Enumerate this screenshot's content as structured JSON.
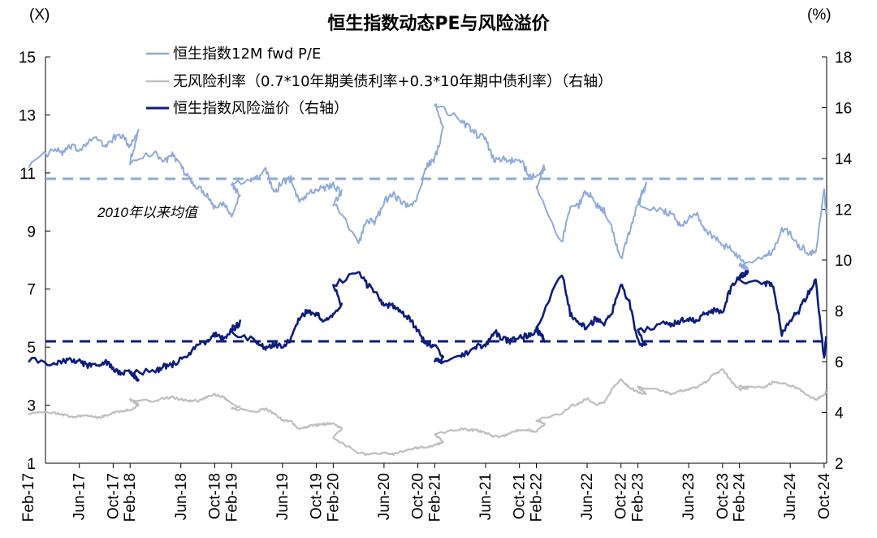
{
  "chart_data": {
    "type": "line",
    "title": "恒生指数动态PE与风险溢价",
    "left_unit": "(X)",
    "right_unit": "(%)",
    "left_axis": {
      "min": 1,
      "max": 15,
      "ticks": [
        "1",
        "3",
        "5",
        "7",
        "9",
        "11",
        "13",
        "15"
      ]
    },
    "right_axis": {
      "min": 2,
      "max": 18,
      "ticks": [
        "2",
        "4",
        "6",
        "8",
        "10",
        "12",
        "14",
        "16",
        "18"
      ]
    },
    "x_ticks": [
      "Feb-17",
      "Jun-17",
      "Oct-17",
      "Feb-18",
      "Jun-18",
      "Oct-18",
      "Feb-19",
      "Jun-19",
      "Oct-19",
      "Feb-20",
      "Jun-20",
      "Oct-20",
      "Feb-21",
      "Jun-21",
      "Oct-21",
      "Feb-22",
      "Jun-22",
      "Oct-22",
      "Feb-23",
      "Jun-23",
      "Oct-23",
      "Feb-24",
      "Jun-24",
      "Oct-24"
    ],
    "legend_position": "top-center",
    "annotation": "2010年以来均值",
    "colors": {
      "pe": "#8eaadb",
      "rf": "#bfbfbf",
      "erp": "#0c1d7d"
    },
    "series": [
      {
        "name": "恒生指数12M fwd P/E",
        "axis": "left",
        "points": [
          [
            "Feb-17",
            11.3
          ],
          [
            "Mar-17",
            11.8
          ],
          [
            "Apr-17",
            11.7
          ],
          [
            "May-17",
            11.9
          ],
          [
            "Jun-17",
            11.8
          ],
          [
            "Jul-17",
            12.1
          ],
          [
            "Aug-17",
            12.2
          ],
          [
            "Sep-17",
            11.9
          ],
          [
            "Oct-17",
            12.2
          ],
          [
            "Nov-17",
            12.3
          ],
          [
            "Dec-17",
            11.9
          ],
          [
            "Jan-18",
            12.5
          ],
          [
            "Feb-18",
            11.4
          ],
          [
            "Mar-18",
            11.7
          ],
          [
            "Apr-18",
            11.4
          ],
          [
            "May-18",
            11.6
          ],
          [
            "Jun-18",
            11.2
          ],
          [
            "Jul-18",
            10.8
          ],
          [
            "Aug-18",
            10.5
          ],
          [
            "Sep-18",
            10.3
          ],
          [
            "Oct-18",
            9.8
          ],
          [
            "Nov-18",
            10.0
          ],
          [
            "Dec-18",
            9.6
          ],
          [
            "Jan-19",
            10.2
          ],
          [
            "Feb-19",
            10.6
          ],
          [
            "Mar-19",
            10.8
          ],
          [
            "Apr-19",
            11.2
          ],
          [
            "May-19",
            10.3
          ],
          [
            "Jun-19",
            10.7
          ],
          [
            "Jul-19",
            10.8
          ],
          [
            "Aug-19",
            10.0
          ],
          [
            "Sep-19",
            10.3
          ],
          [
            "Oct-19",
            10.4
          ],
          [
            "Nov-19",
            10.5
          ],
          [
            "Dec-19",
            10.6
          ],
          [
            "Jan-20",
            10.3
          ],
          [
            "Feb-20",
            10.0
          ],
          [
            "Mar-20",
            8.6
          ],
          [
            "Apr-20",
            9.4
          ],
          [
            "May-20",
            9.3
          ],
          [
            "Jun-20",
            10.0
          ],
          [
            "Jul-20",
            10.3
          ],
          [
            "Aug-20",
            10.0
          ],
          [
            "Sep-20",
            9.8
          ],
          [
            "Oct-20",
            10.2
          ],
          [
            "Nov-20",
            11.2
          ],
          [
            "Dec-20",
            11.5
          ],
          [
            "Jan-21",
            12.5
          ],
          [
            "Feb-21",
            13.4
          ],
          [
            "Mar-21",
            12.8
          ],
          [
            "Apr-21",
            12.6
          ],
          [
            "May-21",
            12.3
          ],
          [
            "Jun-21",
            12.2
          ],
          [
            "Jul-21",
            11.4
          ],
          [
            "Aug-21",
            11.5
          ],
          [
            "Sep-21",
            11.4
          ],
          [
            "Oct-21",
            11.5
          ],
          [
            "Nov-21",
            11.0
          ],
          [
            "Dec-21",
            10.8
          ],
          [
            "Jan-22",
            11.2
          ],
          [
            "Feb-22",
            10.5
          ],
          [
            "Mar-22",
            8.6
          ],
          [
            "Apr-22",
            9.8
          ],
          [
            "May-22",
            9.9
          ],
          [
            "Jun-22",
            10.4
          ],
          [
            "Jul-22",
            9.9
          ],
          [
            "Aug-22",
            9.7
          ],
          [
            "Sep-22",
            9.0
          ],
          [
            "Oct-22",
            8.0
          ],
          [
            "Nov-22",
            9.0
          ],
          [
            "Dec-22",
            10.0
          ],
          [
            "Jan-23",
            10.6
          ],
          [
            "Feb-23",
            9.9
          ],
          [
            "Mar-23",
            9.7
          ],
          [
            "Apr-23",
            9.6
          ],
          [
            "May-23",
            9.2
          ],
          [
            "Jun-23",
            9.4
          ],
          [
            "Jul-23",
            9.6
          ],
          [
            "Aug-23",
            9.0
          ],
          [
            "Sep-23",
            8.8
          ],
          [
            "Oct-23",
            8.5
          ],
          [
            "Nov-23",
            8.4
          ],
          [
            "Dec-23",
            8.1
          ],
          [
            "Jan-24",
            7.6
          ],
          [
            "Feb-24",
            7.9
          ],
          [
            "Mar-24",
            8.1
          ],
          [
            "Apr-24",
            8.3
          ],
          [
            "May-24",
            9.1
          ],
          [
            "Jun-24",
            8.9
          ],
          [
            "Jul-24",
            8.5
          ],
          [
            "Aug-24",
            8.3
          ],
          [
            "Sep-24",
            8.2
          ],
          [
            "Oct-24",
            10.5
          ],
          [
            "Oct-24b",
            9.6
          ]
        ]
      },
      {
        "name": "无风险利率（0.7*10年期美债利率+0.3*10年期中债利率）（右轴）",
        "axis": "right",
        "points": [
          [
            "Feb-17",
            3.95
          ],
          [
            "Mar-17",
            4.0
          ],
          [
            "Apr-17",
            3.9
          ],
          [
            "May-17",
            3.85
          ],
          [
            "Jun-17",
            3.85
          ],
          [
            "Jul-17",
            3.9
          ],
          [
            "Aug-17",
            3.8
          ],
          [
            "Sep-17",
            3.85
          ],
          [
            "Oct-17",
            4.0
          ],
          [
            "Nov-17",
            4.05
          ],
          [
            "Dec-17",
            4.1
          ],
          [
            "Jan-18",
            4.3
          ],
          [
            "Feb-18",
            4.5
          ],
          [
            "Mar-18",
            4.45
          ],
          [
            "Apr-18",
            4.55
          ],
          [
            "May-18",
            4.6
          ],
          [
            "Jun-18",
            4.5
          ],
          [
            "Jul-18",
            4.45
          ],
          [
            "Aug-18",
            4.45
          ],
          [
            "Sep-18",
            4.6
          ],
          [
            "Oct-18",
            4.7
          ],
          [
            "Nov-18",
            4.6
          ],
          [
            "Dec-18",
            4.35
          ],
          [
            "Jan-19",
            4.2
          ],
          [
            "Feb-19",
            4.15
          ],
          [
            "Mar-19",
            4.05
          ],
          [
            "Apr-19",
            4.15
          ],
          [
            "May-19",
            3.95
          ],
          [
            "Jun-19",
            3.7
          ],
          [
            "Jul-19",
            3.65
          ],
          [
            "Aug-19",
            3.35
          ],
          [
            "Sep-19",
            3.45
          ],
          [
            "Oct-19",
            3.5
          ],
          [
            "Nov-19",
            3.55
          ],
          [
            "Dec-19",
            3.55
          ],
          [
            "Jan-20",
            3.35
          ],
          [
            "Feb-20",
            3.0
          ],
          [
            "Mar-20",
            2.4
          ],
          [
            "Apr-20",
            2.35
          ],
          [
            "May-20",
            2.4
          ],
          [
            "Jun-20",
            2.4
          ],
          [
            "Jul-20",
            2.35
          ],
          [
            "Aug-20",
            2.45
          ],
          [
            "Sep-20",
            2.55
          ],
          [
            "Oct-20",
            2.6
          ],
          [
            "Nov-20",
            2.65
          ],
          [
            "Dec-20",
            2.7
          ],
          [
            "Jan-21",
            2.85
          ],
          [
            "Feb-21",
            3.15
          ],
          [
            "Mar-21",
            3.35
          ],
          [
            "Apr-21",
            3.3
          ],
          [
            "May-21",
            3.3
          ],
          [
            "Jun-21",
            3.2
          ],
          [
            "Jul-21",
            3.05
          ],
          [
            "Aug-21",
            3.05
          ],
          [
            "Sep-21",
            3.2
          ],
          [
            "Oct-21",
            3.3
          ],
          [
            "Nov-21",
            3.3
          ],
          [
            "Dec-21",
            3.25
          ],
          [
            "Jan-22",
            3.55
          ],
          [
            "Feb-22",
            3.7
          ],
          [
            "Mar-22",
            3.95
          ],
          [
            "Apr-22",
            4.25
          ],
          [
            "May-22",
            4.35
          ],
          [
            "Jun-22",
            4.55
          ],
          [
            "Jul-22",
            4.3
          ],
          [
            "Aug-22",
            4.4
          ],
          [
            "Sep-22",
            4.95
          ],
          [
            "Oct-22",
            5.3
          ],
          [
            "Nov-22",
            5.0
          ],
          [
            "Dec-22",
            4.8
          ],
          [
            "Jan-23",
            4.75
          ],
          [
            "Feb-23",
            5.0
          ],
          [
            "Mar-23",
            4.85
          ],
          [
            "Apr-23",
            4.7
          ],
          [
            "May-23",
            4.85
          ],
          [
            "Jun-23",
            4.9
          ],
          [
            "Jul-23",
            5.0
          ],
          [
            "Aug-23",
            5.2
          ],
          [
            "Sep-23",
            5.5
          ],
          [
            "Oct-23",
            5.7
          ],
          [
            "Nov-23",
            5.25
          ],
          [
            "Dec-23",
            4.9
          ],
          [
            "Jan-24",
            4.95
          ],
          [
            "Feb-24",
            5.05
          ],
          [
            "Mar-24",
            5.0
          ],
          [
            "Apr-24",
            5.2
          ],
          [
            "May-24",
            5.15
          ],
          [
            "Jun-24",
            5.05
          ],
          [
            "Jul-24",
            4.95
          ],
          [
            "Aug-24",
            4.7
          ],
          [
            "Sep-24",
            4.5
          ],
          [
            "Oct-24",
            4.7
          ],
          [
            "Oct-24b",
            4.8
          ]
        ]
      },
      {
        "name": "恒生指数风险溢价（右轴）",
        "axis": "right",
        "points": [
          [
            "Feb-17",
            6.1
          ],
          [
            "Mar-17",
            5.85
          ],
          [
            "Apr-17",
            6.0
          ],
          [
            "May-17",
            6.1
          ],
          [
            "Jun-17",
            6.0
          ],
          [
            "Jul-17",
            5.85
          ],
          [
            "Aug-17",
            5.8
          ],
          [
            "Sep-17",
            6.0
          ],
          [
            "Oct-17",
            5.75
          ],
          [
            "Nov-17",
            5.5
          ],
          [
            "Dec-17",
            5.6
          ],
          [
            "Jan-18",
            5.3
          ],
          [
            "Feb-18",
            5.6
          ],
          [
            "Mar-18",
            5.6
          ],
          [
            "Apr-18",
            5.8
          ],
          [
            "May-18",
            5.9
          ],
          [
            "Jun-18",
            6.1
          ],
          [
            "Jul-18",
            6.3
          ],
          [
            "Aug-18",
            6.6
          ],
          [
            "Sep-18",
            6.8
          ],
          [
            "Oct-18",
            7.1
          ],
          [
            "Nov-18",
            6.9
          ],
          [
            "Dec-18",
            7.3
          ],
          [
            "Jan-19",
            7.5
          ],
          [
            "Feb-19",
            7.1
          ],
          [
            "Mar-19",
            6.8
          ],
          [
            "Apr-19",
            6.5
          ],
          [
            "May-19",
            6.7
          ],
          [
            "Jun-19",
            6.6
          ],
          [
            "Jul-19",
            6.9
          ],
          [
            "Aug-19",
            7.7
          ],
          [
            "Sep-19",
            8.0
          ],
          [
            "Oct-19",
            7.9
          ],
          [
            "Nov-19",
            7.6
          ],
          [
            "Dec-19",
            7.8
          ],
          [
            "Jan-20",
            8.2
          ],
          [
            "Feb-20",
            9.0
          ],
          [
            "Mar-20",
            9.6
          ],
          [
            "Apr-20",
            9.0
          ],
          [
            "May-20",
            8.8
          ],
          [
            "Jun-20",
            8.2
          ],
          [
            "Jul-20",
            8.2
          ],
          [
            "Aug-20",
            8.0
          ],
          [
            "Sep-20",
            7.7
          ],
          [
            "Oct-20",
            7.2
          ],
          [
            "Nov-20",
            6.7
          ],
          [
            "Dec-20",
            6.6
          ],
          [
            "Jan-21",
            6.1
          ],
          [
            "Feb-21",
            6.0
          ],
          [
            "Mar-21",
            6.2
          ],
          [
            "Apr-21",
            6.4
          ],
          [
            "May-21",
            6.6
          ],
          [
            "Jun-21",
            6.6
          ],
          [
            "Jul-21",
            7.2
          ],
          [
            "Aug-21",
            6.9
          ],
          [
            "Sep-21",
            6.8
          ],
          [
            "Oct-21",
            7.0
          ],
          [
            "Nov-21",
            7.0
          ],
          [
            "Dec-21",
            7.2
          ],
          [
            "Jan-22",
            6.9
          ],
          [
            "Feb-22",
            7.3
          ],
          [
            "Mar-22",
            9.5
          ],
          [
            "Apr-22",
            7.9
          ],
          [
            "May-22",
            7.5
          ],
          [
            "Jun-22",
            7.3
          ],
          [
            "Jul-22",
            7.7
          ],
          [
            "Aug-22",
            7.4
          ],
          [
            "Sep-22",
            8.0
          ],
          [
            "Oct-22",
            9.1
          ],
          [
            "Nov-22",
            8.3
          ],
          [
            "Dec-22",
            6.8
          ],
          [
            "Jan-23",
            6.6
          ],
          [
            "Feb-23",
            7.2
          ],
          [
            "Mar-23",
            7.5
          ],
          [
            "Apr-23",
            7.5
          ],
          [
            "May-23",
            7.6
          ],
          [
            "Jun-23",
            7.7
          ],
          [
            "Jul-23",
            7.6
          ],
          [
            "Aug-23",
            7.9
          ],
          [
            "Sep-23",
            8.0
          ],
          [
            "Oct-23",
            8.0
          ],
          [
            "Nov-23",
            8.9
          ],
          [
            "Dec-23",
            9.3
          ],
          [
            "Jan-24",
            9.6
          ],
          [
            "Feb-24",
            9.2
          ],
          [
            "Mar-24",
            9.1
          ],
          [
            "Apr-24",
            9.0
          ],
          [
            "May-24",
            7.1
          ],
          [
            "Jun-24",
            7.6
          ],
          [
            "Jul-24",
            8.0
          ],
          [
            "Aug-24",
            8.6
          ],
          [
            "Sep-24",
            9.2
          ],
          [
            "Oct-24",
            6.1
          ],
          [
            "Oct-24b",
            7.0
          ]
        ]
      }
    ],
    "mean_lines": [
      {
        "axis": "left",
        "value": 10.8,
        "color": "#8eaadb"
      },
      {
        "axis": "left",
        "value": 5.2,
        "color": "#0c1d7d"
      }
    ]
  }
}
